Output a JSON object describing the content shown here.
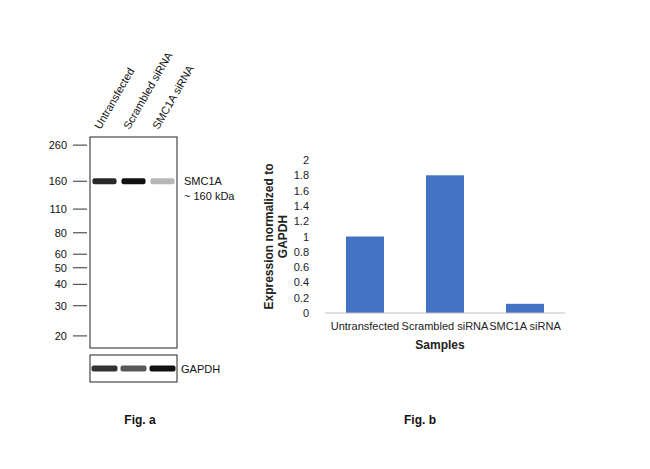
{
  "blot": {
    "caption": "Fig. a",
    "lanes": [
      "Untransfected",
      "Scrambled siRNA",
      "SMC1A siRNA"
    ],
    "ylim": [
      290,
      17
    ],
    "markers": [
      260,
      160,
      110,
      80,
      60,
      50,
      40,
      30,
      20
    ],
    "target": {
      "label": "SMC1A",
      "size_label": "~ 160 kDa",
      "kda": 160,
      "intensity": [
        0.9,
        1,
        0.3
      ]
    },
    "loading": {
      "label": "GAPDH",
      "intensity": [
        0.85,
        0.7,
        1
      ]
    }
  },
  "chart_data": {
    "type": "bar",
    "caption": "Fig. b",
    "x_label": "Samples",
    "y_label": "Expression normalized to GAPDH",
    "categories": [
      "Untransfected",
      "Scrambled siRNA",
      "SMC1A siRNA"
    ],
    "values": [
      1,
      1.8,
      0.12
    ],
    "color": "#4472c4",
    "ylim": [
      0,
      2
    ],
    "yticks": [
      0,
      0.2,
      0.4,
      0.6,
      0.8,
      1,
      1.2,
      1.4,
      1.6,
      1.8,
      2
    ],
    "grid": false
  }
}
